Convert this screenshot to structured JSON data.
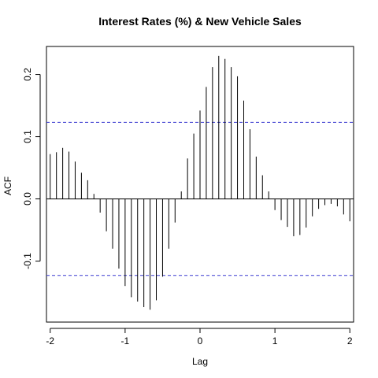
{
  "chart_data": {
    "type": "bar",
    "title": "Interest Rates (%) & New Vehicle Sales",
    "xlabel": "Lag",
    "ylabel": "ACF",
    "xlim": [
      -2.05,
      2.05
    ],
    "ylim": [
      -0.198,
      0.245
    ],
    "x_ticks": [
      -2,
      -1,
      0,
      1,
      2
    ],
    "x_tick_labels": [
      "-2",
      "-1",
      "0",
      "1",
      "2"
    ],
    "y_ticks": [
      -0.1,
      0.0,
      0.1,
      0.2
    ],
    "y_tick_labels": [
      "-0.1",
      "0.0",
      "0.1",
      "0.2"
    ],
    "confidence_bounds": [
      0.123,
      -0.123
    ],
    "reference_line": 0,
    "lags": [
      -2.0,
      -1.9167,
      -1.8333,
      -1.75,
      -1.6667,
      -1.5833,
      -1.5,
      -1.4167,
      -1.3333,
      -1.25,
      -1.1667,
      -1.0833,
      -1.0,
      -0.9167,
      -0.8333,
      -0.75,
      -0.6667,
      -0.5833,
      -0.5,
      -0.4167,
      -0.3333,
      -0.25,
      -0.1667,
      -0.0833,
      0.0,
      0.0833,
      0.1667,
      0.25,
      0.3333,
      0.4167,
      0.5,
      0.5833,
      0.6667,
      0.75,
      0.8333,
      0.9167,
      1.0,
      1.0833,
      1.1667,
      1.25,
      1.3333,
      1.4167,
      1.5,
      1.5833,
      1.6667,
      1.75,
      1.8333,
      1.9167,
      2.0
    ],
    "acf": [
      0.072,
      0.075,
      0.082,
      0.076,
      0.06,
      0.042,
      0.03,
      0.008,
      -0.022,
      -0.052,
      -0.08,
      -0.112,
      -0.14,
      -0.158,
      -0.165,
      -0.174,
      -0.178,
      -0.163,
      -0.125,
      -0.08,
      -0.038,
      0.012,
      0.065,
      0.105,
      0.142,
      0.18,
      0.212,
      0.23,
      0.225,
      0.212,
      0.197,
      0.158,
      0.112,
      0.068,
      0.038,
      0.012,
      -0.018,
      -0.034,
      -0.045,
      -0.06,
      -0.058,
      -0.046,
      -0.028,
      -0.016,
      -0.01,
      -0.008,
      -0.012,
      -0.025,
      -0.036
    ],
    "colors": {
      "bars": "#000000",
      "bounds": "#3a3ad1",
      "axis": "#000000"
    }
  }
}
